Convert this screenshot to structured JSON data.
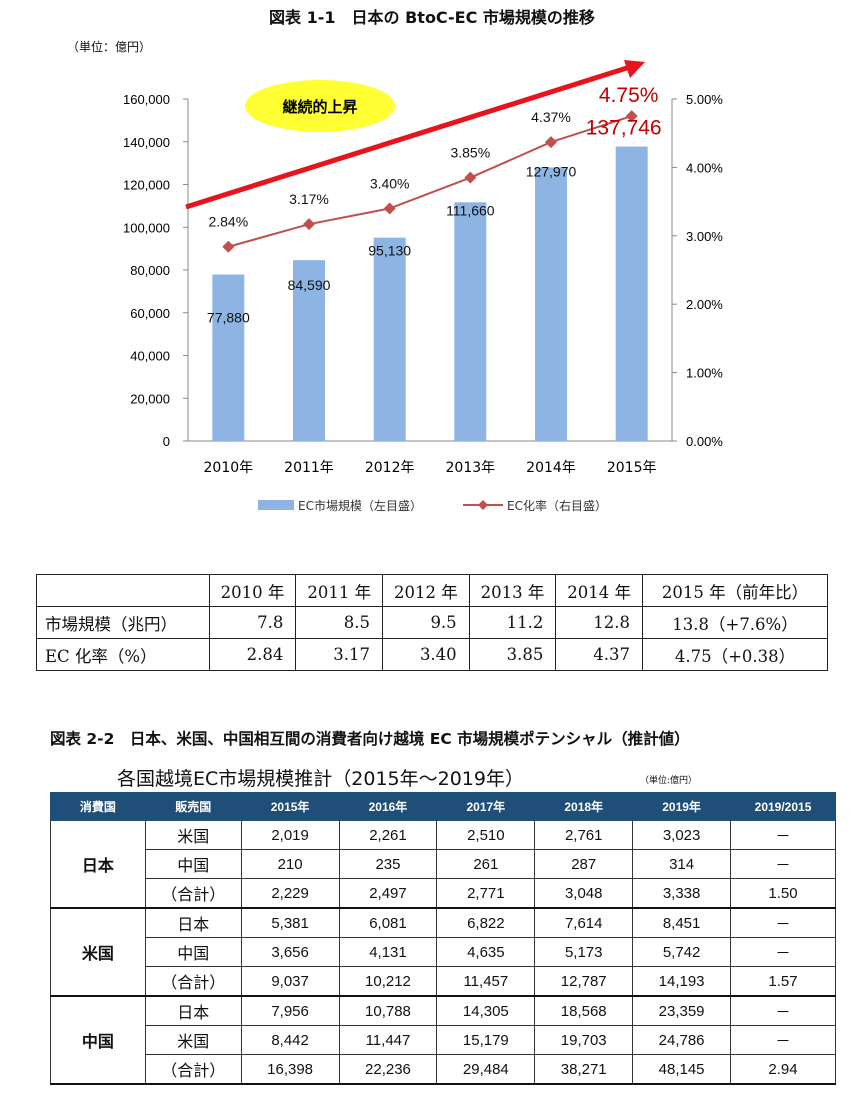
{
  "figure1": {
    "title": "図表 1-1　日本の BtoC-EC 市場規模の推移",
    "unit": "（単位：億円）",
    "annotation": "継続的上昇",
    "legend_bar": "EC市場規模（左目盛）",
    "legend_line": "EC化率（右目盛）",
    "bar_color": "#8db4e2",
    "line_color": "#c0504d",
    "arrow_color": "#e8141c"
  },
  "chart_data": {
    "type": "bar",
    "categories": [
      "2010年",
      "2011年",
      "2012年",
      "2013年",
      "2014年",
      "2015年"
    ],
    "series": [
      {
        "name": "EC市場規模（左目盛）",
        "type": "bar",
        "axis": "left",
        "values": [
          77880,
          84590,
          95130,
          111660,
          127970,
          137746
        ],
        "labels": [
          "77,880",
          "84,590",
          "95,130",
          "111,660",
          "127,970",
          "137,746"
        ]
      },
      {
        "name": "EC化率（右目盛）",
        "type": "line",
        "axis": "right",
        "values": [
          2.84,
          3.17,
          3.4,
          3.85,
          4.37,
          4.75
        ],
        "labels": [
          "2.84%",
          "3.17%",
          "3.40%",
          "3.85%",
          "4.37%",
          "4.75%"
        ]
      }
    ],
    "ylim_left": [
      0,
      160000
    ],
    "yticks_left": [
      "0",
      "20,000",
      "40,000",
      "60,000",
      "80,000",
      "100,000",
      "120,000",
      "140,000",
      "160,000"
    ],
    "ylim_right": [
      0,
      5
    ],
    "yticks_right": [
      "0.00%",
      "1.00%",
      "2.00%",
      "3.00%",
      "4.00%",
      "5.00%"
    ],
    "legend_position": "bottom",
    "grid": false
  },
  "summary_table": {
    "headers": [
      "",
      "2010 年",
      "2011 年",
      "2012 年",
      "2013 年",
      "2014 年",
      "2015 年（前年比）"
    ],
    "rows": [
      {
        "label": "市場規模（兆円）",
        "cells": [
          "7.8",
          "8.5",
          "9.5",
          "11.2",
          "12.8",
          "13.8（+7.6%）"
        ]
      },
      {
        "label": "EC 化率（%）",
        "cells": [
          "2.84",
          "3.17",
          "3.40",
          "3.85",
          "4.37",
          "4.75（+0.38）"
        ]
      }
    ]
  },
  "figure2": {
    "title": "図表 2-2　日本、米国、中国相互間の消費者向け越境 EC 市場規模ポテンシャル（推計値）",
    "subtitle": "各国越境EC市場規模推計（2015年～2019年）",
    "unit": "（単位:億円）",
    "header_color": "#1f4e79",
    "headers": [
      "消費国",
      "販売国",
      "2015年",
      "2016年",
      "2017年",
      "2018年",
      "2019年",
      "2019/2015"
    ],
    "groups": [
      {
        "consumer": "日本",
        "rows": [
          {
            "seller": "米国",
            "values": [
              "2,019",
              "2,261",
              "2,510",
              "2,761",
              "3,023"
            ],
            "ratio": "－"
          },
          {
            "seller": "中国",
            "values": [
              "210",
              "235",
              "261",
              "287",
              "314"
            ],
            "ratio": "－"
          },
          {
            "seller": "（合計）",
            "values": [
              "2,229",
              "2,497",
              "2,771",
              "3,048",
              "3,338"
            ],
            "ratio": "1.50"
          }
        ]
      },
      {
        "consumer": "米国",
        "rows": [
          {
            "seller": "日本",
            "values": [
              "5,381",
              "6,081",
              "6,822",
              "7,614",
              "8,451"
            ],
            "ratio": "－"
          },
          {
            "seller": "中国",
            "values": [
              "3,656",
              "4,131",
              "4,635",
              "5,173",
              "5,742"
            ],
            "ratio": "－"
          },
          {
            "seller": "（合計）",
            "values": [
              "9,037",
              "10,212",
              "11,457",
              "12,787",
              "14,193"
            ],
            "ratio": "1.57"
          }
        ]
      },
      {
        "consumer": "中国",
        "rows": [
          {
            "seller": "日本",
            "values": [
              "7,956",
              "10,788",
              "14,305",
              "18,568",
              "23,359"
            ],
            "ratio": "－"
          },
          {
            "seller": "米国",
            "values": [
              "8,442",
              "11,447",
              "15,179",
              "19,703",
              "24,786"
            ],
            "ratio": "－"
          },
          {
            "seller": "（合計）",
            "values": [
              "16,398",
              "22,236",
              "29,484",
              "38,271",
              "48,145"
            ],
            "ratio": "2.94"
          }
        ]
      }
    ]
  }
}
